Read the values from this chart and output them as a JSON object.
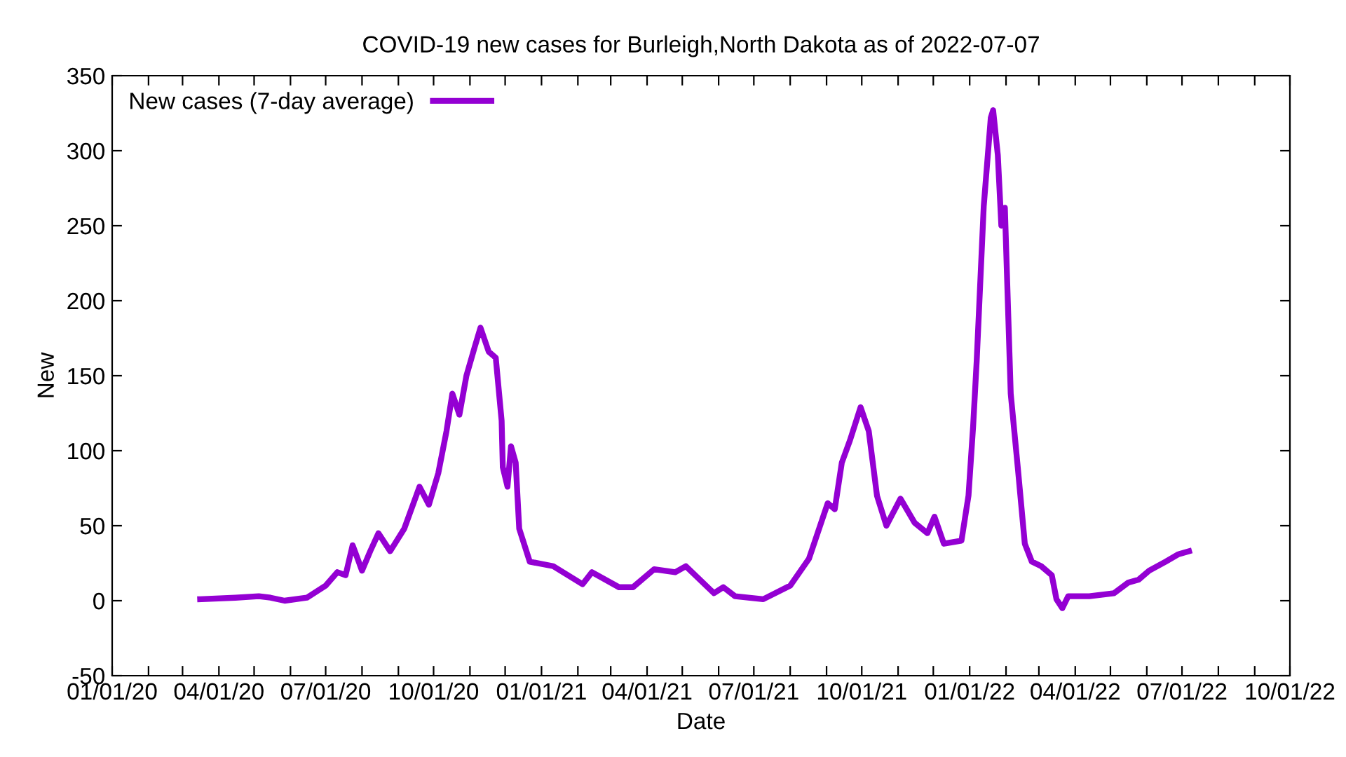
{
  "chart_data": {
    "type": "line",
    "title": "COVID-19 new cases for Burleigh,North Dakota as of 2022-07-07",
    "xlabel": "Date",
    "ylabel": "New",
    "x": [
      "2020-03-16",
      "2020-04-15",
      "2020-05-05",
      "2020-05-15",
      "2020-05-27",
      "2020-06-15",
      "2020-07-01",
      "2020-07-11",
      "2020-07-18",
      "2020-07-24",
      "2020-08-01",
      "2020-08-08",
      "2020-08-15",
      "2020-08-25",
      "2020-09-06",
      "2020-09-19",
      "2020-09-27",
      "2020-10-05",
      "2020-10-12",
      "2020-10-17",
      "2020-10-23",
      "2020-10-29",
      "2020-11-05",
      "2020-11-10",
      "2020-11-17",
      "2020-11-23",
      "2020-11-28",
      "2020-11-29",
      "2020-12-03",
      "2020-12-06",
      "2020-12-10",
      "2020-12-13",
      "2020-12-22",
      "2021-01-11",
      "2021-02-05",
      "2021-02-13",
      "2021-03-08",
      "2021-03-20",
      "2021-04-07",
      "2021-04-25",
      "2021-05-04",
      "2021-05-28",
      "2021-06-05",
      "2021-06-15",
      "2021-07-09",
      "2021-08-01",
      "2021-08-17",
      "2021-09-02",
      "2021-09-08",
      "2021-09-14",
      "2021-09-21",
      "2021-09-30",
      "2021-10-07",
      "2021-10-14",
      "2021-10-22",
      "2021-11-03",
      "2021-11-15",
      "2021-11-26",
      "2021-12-02",
      "2021-12-10",
      "2021-12-25",
      "2021-12-31",
      "2022-01-04",
      "2022-01-07",
      "2022-01-13",
      "2022-01-19",
      "2022-01-21",
      "2022-01-25",
      "2022-01-28",
      "2022-01-31",
      "2022-02-05",
      "2022-02-11",
      "2022-02-17",
      "2022-02-23",
      "2022-03-03",
      "2022-03-12",
      "2022-03-16",
      "2022-03-21",
      "2022-03-26",
      "2022-04-13",
      "2022-05-04",
      "2022-05-16",
      "2022-05-25",
      "2022-06-03",
      "2022-06-17",
      "2022-06-28",
      "2022-07-07"
    ],
    "series": [
      {
        "name": "New cases (7-day average)",
        "color": "#9400d3",
        "values": [
          1,
          2,
          3,
          2,
          0,
          2,
          10,
          19,
          17,
          37,
          20,
          33,
          45,
          33,
          48,
          76,
          64,
          85,
          113,
          138,
          124,
          150,
          169,
          182,
          166,
          162,
          120,
          89,
          76,
          103,
          92,
          48,
          26,
          23,
          11,
          19,
          9,
          9,
          21,
          19,
          23,
          5,
          9,
          3,
          1,
          10,
          28,
          65,
          61,
          92,
          107,
          129,
          113,
          70,
          50,
          68,
          52,
          45,
          56,
          38,
          40,
          70,
          117,
          160,
          263,
          322,
          327,
          297,
          250,
          262,
          138,
          89,
          38,
          26,
          23,
          17,
          1,
          -5,
          3,
          3,
          5,
          12,
          14,
          20,
          26,
          31,
          33
        ]
      }
    ],
    "xlim": [
      "2020-01-01",
      "2022-10-01"
    ],
    "xticks": [
      {
        "value": "2020-01-01",
        "label": "01/01/20"
      },
      {
        "value": "2020-02-01",
        "label": null
      },
      {
        "value": "2020-03-01",
        "label": null
      },
      {
        "value": "2020-04-01",
        "label": "04/01/20"
      },
      {
        "value": "2020-05-01",
        "label": null
      },
      {
        "value": "2020-06-01",
        "label": null
      },
      {
        "value": "2020-07-01",
        "label": "07/01/20"
      },
      {
        "value": "2020-08-01",
        "label": null
      },
      {
        "value": "2020-09-01",
        "label": null
      },
      {
        "value": "2020-10-01",
        "label": "10/01/20"
      },
      {
        "value": "2020-11-01",
        "label": null
      },
      {
        "value": "2020-12-01",
        "label": null
      },
      {
        "value": "2021-01-01",
        "label": "01/01/21"
      },
      {
        "value": "2021-02-01",
        "label": null
      },
      {
        "value": "2021-03-01",
        "label": null
      },
      {
        "value": "2021-04-01",
        "label": "04/01/21"
      },
      {
        "value": "2021-05-01",
        "label": null
      },
      {
        "value": "2021-06-01",
        "label": null
      },
      {
        "value": "2021-07-01",
        "label": "07/01/21"
      },
      {
        "value": "2021-08-01",
        "label": null
      },
      {
        "value": "2021-09-01",
        "label": null
      },
      {
        "value": "2021-10-01",
        "label": "10/01/21"
      },
      {
        "value": "2021-11-01",
        "label": null
      },
      {
        "value": "2021-12-01",
        "label": null
      },
      {
        "value": "2022-01-01",
        "label": "01/01/22"
      },
      {
        "value": "2022-02-01",
        "label": null
      },
      {
        "value": "2022-03-01",
        "label": null
      },
      {
        "value": "2022-04-01",
        "label": "04/01/22"
      },
      {
        "value": "2022-05-01",
        "label": null
      },
      {
        "value": "2022-06-01",
        "label": null
      },
      {
        "value": "2022-07-01",
        "label": "07/01/22"
      },
      {
        "value": "2022-08-01",
        "label": null
      },
      {
        "value": "2022-09-01",
        "label": null
      },
      {
        "value": "2022-10-01",
        "label": "10/01/22"
      }
    ],
    "ylim": [
      -50,
      350
    ],
    "yticks": [
      -50,
      0,
      50,
      100,
      150,
      200,
      250,
      300,
      350
    ],
    "legend": "top left",
    "grid": false,
    "marker": "none",
    "line_style": "solid"
  }
}
